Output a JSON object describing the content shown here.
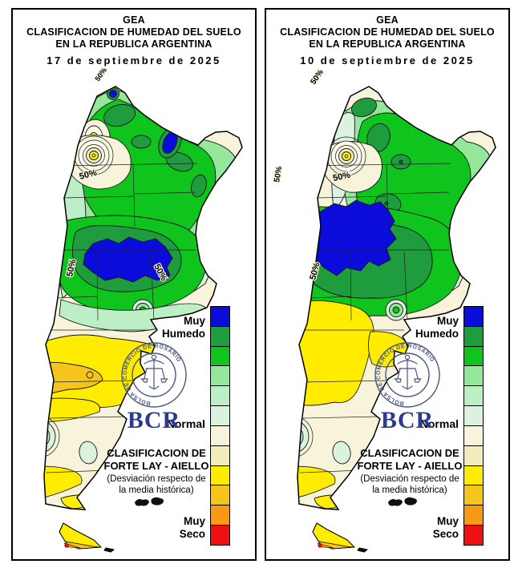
{
  "panels": [
    {
      "org": "GEA",
      "title_line1": "CLASIFICACION DE HUMEDAD DEL SUELO",
      "title_line2": "EN LA REPUBLICA ARGENTINA",
      "date": "17 de septiembre de 2025"
    },
    {
      "org": "GEA",
      "title_line1": "CLASIFICACION DE HUMEDAD DEL SUELO",
      "title_line2": "EN LA REPUBLICA ARGENTINA",
      "date": "10 de septiembre de 2025"
    }
  ],
  "legend": {
    "label_top_line1": "Muy",
    "label_top_line2": "Humedo",
    "label_middle": "Normal",
    "label_bottom_line1": "Muy",
    "label_bottom_line2": "Seco",
    "colors": [
      "#0B0BDC",
      "#1E9C3E",
      "#0FC51D",
      "#95E79B",
      "#BDEFC7",
      "#DBF2DF",
      "#F7F4DB",
      "#F2EBBC",
      "#FFEC00",
      "#F6C51B",
      "#FA9914",
      "#EE1111"
    ]
  },
  "branding": {
    "acronym": "BCR",
    "seal_text": "BOLSA DE COMERCIO DE ROSARIO",
    "acronym_color": "#2B3C8E"
  },
  "classification": {
    "line1": "CLASIFICACION DE",
    "line2": "FORTE LAY - AIELLO",
    "note_line1": "(Desviación respecto de",
    "note_line2": "la media histórica)"
  },
  "map": {
    "contour_label": "50%",
    "scale_semantics": [
      "Muy Humedo (azul)",
      "Humedo (verdes)",
      "Normal (crema)",
      "Seco (amarillos)",
      "Muy Seco (rojo)"
    ]
  }
}
